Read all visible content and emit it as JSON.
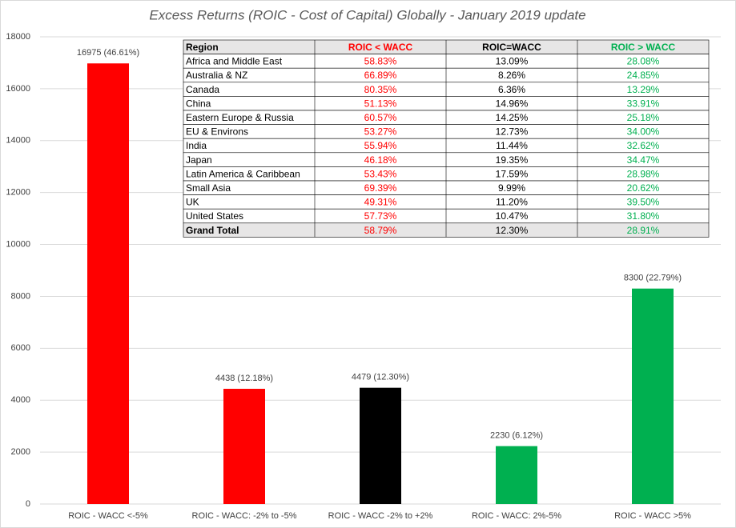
{
  "chart_data": {
    "type": "bar",
    "title": "Excess Returns (ROIC - Cost of Capital) Globally - January 2019 update",
    "categories": [
      "ROIC - WACC <-5%",
      "ROIC - WACC: -2% to -5%",
      "ROIC - WACC -2% to +2%",
      "ROIC - WACC: 2%-5%",
      "ROIC - WACC >5%"
    ],
    "values": [
      16975,
      4438,
      4479,
      2230,
      8300
    ],
    "value_labels": [
      "16975 (46.61%)",
      "4438 (12.18%)",
      "4479 (12.30%)",
      "2230 (6.12%)",
      "8300 (22.79%)"
    ],
    "colors": [
      "#ff0000",
      "#ff0000",
      "#000000",
      "#00b050",
      "#00b050"
    ],
    "ylim": [
      0,
      18000
    ],
    "yticks": [
      0,
      2000,
      4000,
      6000,
      8000,
      10000,
      12000,
      14000,
      16000,
      18000
    ],
    "grid": true
  },
  "table": {
    "header": [
      "Region",
      "ROIC < WACC",
      "ROIC=WACC",
      "ROIC > WACC"
    ],
    "column_colors": [
      "#000000",
      "#ff0000",
      "#000000",
      "#00b050"
    ],
    "rows": [
      [
        "Africa and Middle East",
        "58.83%",
        "13.09%",
        "28.08%"
      ],
      [
        "Australia & NZ",
        "66.89%",
        "8.26%",
        "24.85%"
      ],
      [
        "Canada",
        "80.35%",
        "6.36%",
        "13.29%"
      ],
      [
        "China",
        "51.13%",
        "14.96%",
        "33.91%"
      ],
      [
        "Eastern Europe & Russia",
        "60.57%",
        "14.25%",
        "25.18%"
      ],
      [
        "EU & Environs",
        "53.27%",
        "12.73%",
        "34.00%"
      ],
      [
        "India",
        "55.94%",
        "11.44%",
        "32.62%"
      ],
      [
        "Japan",
        "46.18%",
        "19.35%",
        "34.47%"
      ],
      [
        "Latin America & Caribbean",
        "53.43%",
        "17.59%",
        "28.98%"
      ],
      [
        "Small Asia",
        "69.39%",
        "9.99%",
        "20.62%"
      ],
      [
        "UK",
        "49.31%",
        "11.20%",
        "39.50%"
      ],
      [
        "United States",
        "57.73%",
        "10.47%",
        "31.80%"
      ],
      [
        "Grand Total",
        "58.79%",
        "12.30%",
        "28.91%"
      ]
    ]
  }
}
